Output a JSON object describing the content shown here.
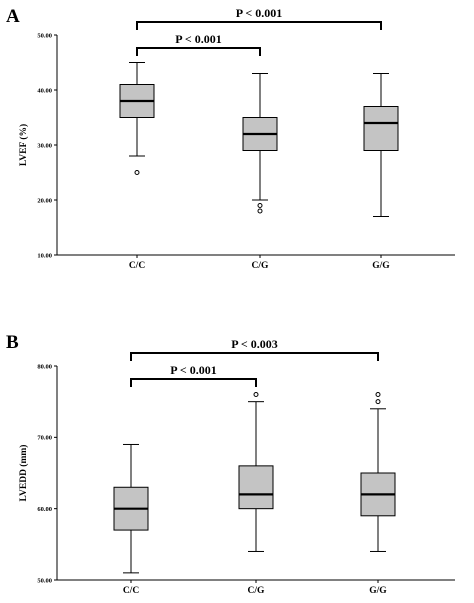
{
  "chart_data": [
    {
      "type": "box",
      "panel_label": "A",
      "ylabel": "LVEF (%)",
      "ylim": [
        10,
        50
      ],
      "yticks": [
        "10.00",
        "20.00",
        "30.00",
        "40.00",
        "50.00"
      ],
      "ytick_values": [
        10,
        20,
        30,
        40,
        50
      ],
      "categories": [
        "C/C",
        "C/G",
        "G/G"
      ],
      "boxes": [
        {
          "category": "C/C",
          "min": 28,
          "q1": 35,
          "median": 38,
          "q3": 41,
          "max": 45,
          "outliers": [
            25
          ]
        },
        {
          "category": "C/G",
          "min": 20,
          "q1": 29,
          "median": 32,
          "q3": 35,
          "max": 43,
          "outliers": [
            19,
            18
          ]
        },
        {
          "category": "G/G",
          "min": 17,
          "q1": 29,
          "median": 34,
          "q3": 37,
          "max": 43,
          "outliers": []
        }
      ],
      "annotations": [
        {
          "text": "P < 0.001",
          "from": "C/C",
          "to": "C/G"
        },
        {
          "text": "P < 0.001",
          "from": "C/C",
          "to": "G/G"
        }
      ],
      "box_color": "#c4c4c4"
    },
    {
      "type": "box",
      "panel_label": "B",
      "ylabel": "LVEDD (mm)",
      "ylim": [
        50,
        80
      ],
      "yticks": [
        "50.00",
        "60.00",
        "70.00",
        "80.00"
      ],
      "ytick_values": [
        50,
        60,
        70,
        80
      ],
      "categories": [
        "C/C",
        "C/G",
        "G/G"
      ],
      "boxes": [
        {
          "category": "C/C",
          "min": 51,
          "q1": 57,
          "median": 60,
          "q3": 63,
          "max": 69,
          "outliers": []
        },
        {
          "category": "C/G",
          "min": 54,
          "q1": 60,
          "median": 62,
          "q3": 66,
          "max": 75,
          "outliers": [
            76
          ]
        },
        {
          "category": "G/G",
          "min": 54,
          "q1": 59,
          "median": 62,
          "q3": 65,
          "max": 74,
          "outliers": [
            75,
            76
          ]
        }
      ],
      "annotations": [
        {
          "text": "P < 0.001",
          "from": "C/C",
          "to": "C/G"
        },
        {
          "text": "P < 0.003",
          "from": "C/C",
          "to": "G/G"
        }
      ],
      "box_color": "#c4c4c4"
    }
  ]
}
